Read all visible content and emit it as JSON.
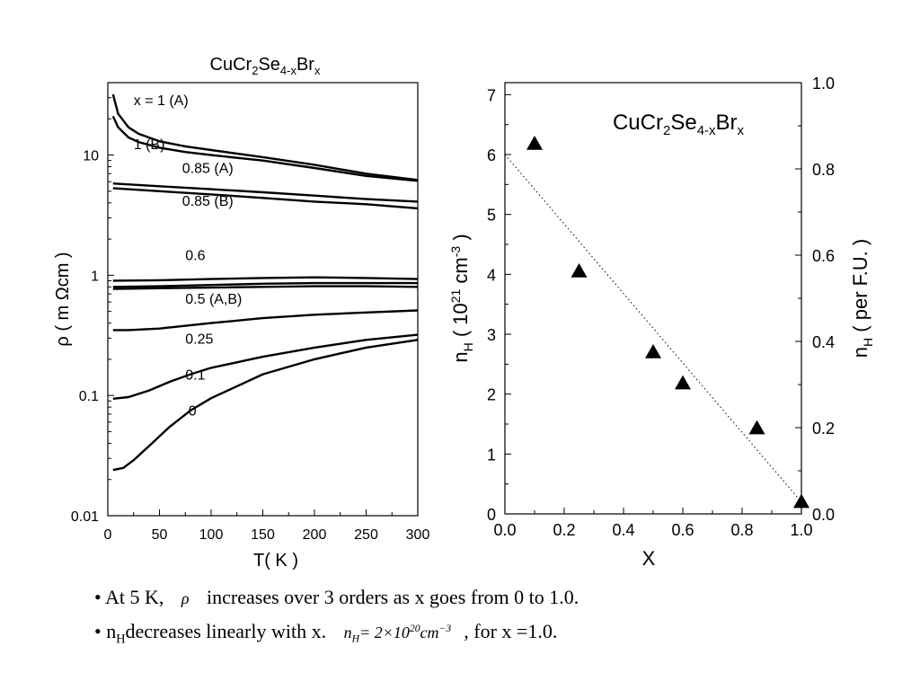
{
  "chart_data": [
    {
      "type": "line",
      "title_parts": {
        "base1": "CuCr",
        "sub1": "2",
        "base2": "Se",
        "sub2": "4-x",
        "base3": "Br",
        "sub3": "x"
      },
      "xlabel": "T( K )",
      "ylabel": "ρ ( m Ωcm )",
      "xlim": [
        0,
        300
      ],
      "ylim": [
        0.01,
        40
      ],
      "yscale": "log",
      "xticks": [
        0,
        50,
        100,
        150,
        200,
        250,
        300
      ],
      "yticks": [
        0.01,
        0.1,
        1,
        10
      ],
      "ytick_labels": [
        "0.01",
        "0.1",
        "1",
        "10"
      ],
      "grid": false,
      "series": [
        {
          "name": "x = 1 (A)",
          "x": [
            5,
            10,
            20,
            30,
            50,
            75,
            100,
            150,
            200,
            250,
            300
          ],
          "y": [
            32,
            22,
            17,
            15,
            13,
            11.8,
            11,
            9.6,
            8.3,
            7,
            6.2
          ]
        },
        {
          "name": "1 (B)",
          "x": [
            5,
            10,
            20,
            30,
            50,
            75,
            100,
            150,
            200,
            250,
            300
          ],
          "y": [
            21,
            17,
            14,
            12.8,
            11.5,
            10.6,
            10,
            9,
            7.8,
            6.7,
            6.1
          ]
        },
        {
          "name": "0.85 (A)",
          "x": [
            5,
            50,
            100,
            150,
            200,
            250,
            300
          ],
          "y": [
            5.8,
            5.5,
            5.2,
            4.9,
            4.6,
            4.3,
            4.1
          ]
        },
        {
          "name": "0.85 (B)",
          "x": [
            5,
            50,
            100,
            150,
            200,
            250,
            300
          ],
          "y": [
            5.3,
            5.0,
            4.7,
            4.4,
            4.1,
            3.9,
            3.6
          ]
        },
        {
          "name": "0.6",
          "x": [
            5,
            50,
            100,
            150,
            200,
            250,
            300
          ],
          "y": [
            0.9,
            0.91,
            0.93,
            0.95,
            0.96,
            0.95,
            0.93
          ]
        },
        {
          "name": "0.5 (A)",
          "x": [
            5,
            50,
            100,
            150,
            200,
            250,
            300
          ],
          "y": [
            0.8,
            0.81,
            0.83,
            0.85,
            0.86,
            0.86,
            0.86
          ]
        },
        {
          "name": "0.5 (B)",
          "x": [
            5,
            50,
            100,
            150,
            200,
            250,
            300
          ],
          "y": [
            0.77,
            0.78,
            0.79,
            0.8,
            0.81,
            0.81,
            0.8
          ]
        },
        {
          "name": "0.25",
          "x": [
            5,
            20,
            50,
            100,
            150,
            200,
            250,
            300
          ],
          "y": [
            0.35,
            0.35,
            0.36,
            0.4,
            0.44,
            0.47,
            0.49,
            0.51
          ]
        },
        {
          "name": "0.1",
          "x": [
            5,
            20,
            40,
            60,
            80,
            100,
            150,
            200,
            250,
            300
          ],
          "y": [
            0.094,
            0.097,
            0.11,
            0.13,
            0.15,
            0.17,
            0.21,
            0.25,
            0.29,
            0.32
          ]
        },
        {
          "name": "0",
          "x": [
            5,
            15,
            25,
            40,
            60,
            80,
            100,
            150,
            200,
            250,
            300
          ],
          "y": [
            0.024,
            0.025,
            0.029,
            0.038,
            0.055,
            0.075,
            0.095,
            0.15,
            0.2,
            0.25,
            0.29
          ]
        }
      ],
      "annotations": [
        {
          "text": "x = 1 (A)",
          "x": 25,
          "y": 26
        },
        {
          "text": "1 (B)",
          "x": 25,
          "y": 11.2
        },
        {
          "text": "0.85 (A)",
          "x": 72,
          "y": 7.1
        },
        {
          "text": "0.85 (B)",
          "x": 72,
          "y": 3.8
        },
        {
          "text": "0.6",
          "x": 75,
          "y": 1.34
        },
        {
          "text": "0.5 (A,B)",
          "x": 75,
          "y": 0.58
        },
        {
          "text": "0.25",
          "x": 75,
          "y": 0.27
        },
        {
          "text": "0.1",
          "x": 75,
          "y": 0.135
        },
        {
          "text": "0",
          "x": 78,
          "y": 0.068
        }
      ]
    },
    {
      "type": "scatter",
      "title_parts": {
        "base1": "CuCr",
        "sub1": "2",
        "base2": "Se",
        "sub2": "4-x",
        "base3": "Br",
        "sub3": "x"
      },
      "xlabel": "X",
      "ylabel_parts": {
        "base": "n",
        "sub": "H",
        "mid": " ( 10",
        "sup": "21",
        "unit": " cm",
        "unit_sup": "-3",
        "end": " )"
      },
      "y2label_parts": {
        "base": "n",
        "sub": "H",
        "rest": " ( per F.U. )"
      },
      "xlim": [
        0,
        1
      ],
      "ylim": [
        0,
        7.2
      ],
      "y2lim": [
        0,
        1.0
      ],
      "xticks": [
        0.0,
        0.2,
        0.4,
        0.6,
        0.8,
        1.0
      ],
      "xtick_labels": [
        "0.0",
        "0.2",
        "0.4",
        "0.6",
        "0.8",
        "1.0"
      ],
      "yticks": [
        0,
        1,
        2,
        3,
        4,
        5,
        6,
        7
      ],
      "y2ticks": [
        0.0,
        0.2,
        0.4,
        0.6,
        0.8,
        1.0
      ],
      "y2tick_labels": [
        "0.0",
        "0.2",
        "0.4",
        "0.6",
        "0.8",
        "1.0"
      ],
      "grid": false,
      "x": [
        0.1,
        0.25,
        0.5,
        0.6,
        0.85,
        1.0
      ],
      "y": [
        6.18,
        4.05,
        2.7,
        2.18,
        1.43,
        0.2
      ],
      "marker": "triangle",
      "fit_line": {
        "style": "dotted",
        "x": [
          0.0,
          1.0
        ],
        "y": [
          6.0,
          0.2
        ]
      }
    }
  ],
  "bullets": [
    {
      "prefix": "• At 5 K,",
      "symbol": "ρ",
      "text": "increases over 3 orders as x goes from 0 to 1.0."
    },
    {
      "prefix_base": "• n",
      "prefix_sub": "H",
      "text": " decreases linearly with x.",
      "eq_base": "n",
      "eq_sub": "H",
      "eq_mid": " = 2×10",
      "eq_sup": "20",
      "eq_unit": " cm",
      "eq_unit_sup": "−3",
      "tail": ", for x =1.0."
    }
  ],
  "colors": {
    "ink": "#000000",
    "background": "#ffffff"
  }
}
